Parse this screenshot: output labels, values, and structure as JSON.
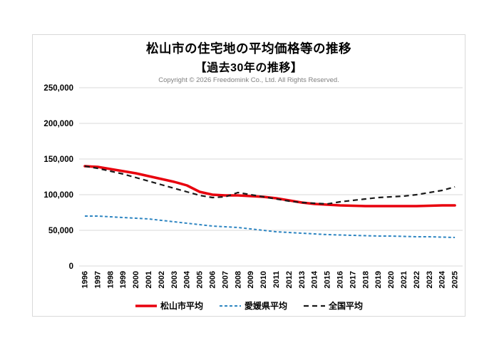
{
  "header": {
    "title": "松山市の住宅地の平均価格等の推移",
    "subtitle": "【過去30年の推移】",
    "copyright": "Copyright © 2026 Freedomink Co., Ltd. All Rights Reserved."
  },
  "chart_data": {
    "type": "line",
    "title": "松山市の住宅地の平均価格等の推移【過去30年の推移】",
    "x": [
      1996,
      1997,
      1998,
      1999,
      2000,
      2001,
      2002,
      2003,
      2004,
      2005,
      2006,
      2007,
      2008,
      2009,
      2010,
      2011,
      2012,
      2013,
      2014,
      2015,
      2016,
      2017,
      2018,
      2019,
      2020,
      2021,
      2022,
      2023,
      2024,
      2025
    ],
    "series": [
      {
        "name": "松山市平均",
        "color": "#e8000d",
        "dash": "solid",
        "width": 3.5,
        "values": [
          140000,
          139000,
          136000,
          133000,
          130000,
          126000,
          122000,
          118000,
          113000,
          104000,
          100000,
          99000,
          99000,
          98000,
          97000,
          95000,
          92000,
          89000,
          87000,
          86000,
          85000,
          84500,
          84000,
          84000,
          84000,
          84000,
          84000,
          84500,
          85000,
          85000
        ]
      },
      {
        "name": "愛媛県平均",
        "color": "#2f86c2",
        "dash": "4 3",
        "width": 2,
        "values": [
          70000,
          70000,
          69000,
          68000,
          67000,
          66000,
          64000,
          62000,
          60000,
          58000,
          56000,
          55000,
          54000,
          52000,
          50000,
          48000,
          47000,
          46000,
          45000,
          44000,
          43500,
          43000,
          42500,
          42000,
          42000,
          41500,
          41000,
          41000,
          40500,
          40000
        ]
      },
      {
        "name": "全国平均",
        "color": "#1a1a1a",
        "dash": "7 5",
        "width": 2.2,
        "values": [
          140000,
          137000,
          133000,
          129000,
          124000,
          119000,
          114000,
          109000,
          104000,
          99000,
          96000,
          97000,
          103000,
          100000,
          97000,
          94000,
          91000,
          89000,
          88000,
          87000,
          90000,
          92000,
          94000,
          96000,
          97000,
          98000,
          100000,
          103000,
          106000,
          111000
        ]
      }
    ],
    "ylim": [
      0,
      250000
    ],
    "ytick_step": 50000,
    "ytick_labels": [
      "0",
      "50,000",
      "100,000",
      "150,000",
      "200,000",
      "250,000"
    ],
    "xlabel": "",
    "ylabel": "",
    "grid": true,
    "grid_color": "#d9d9d9",
    "legend_position": "bottom"
  }
}
